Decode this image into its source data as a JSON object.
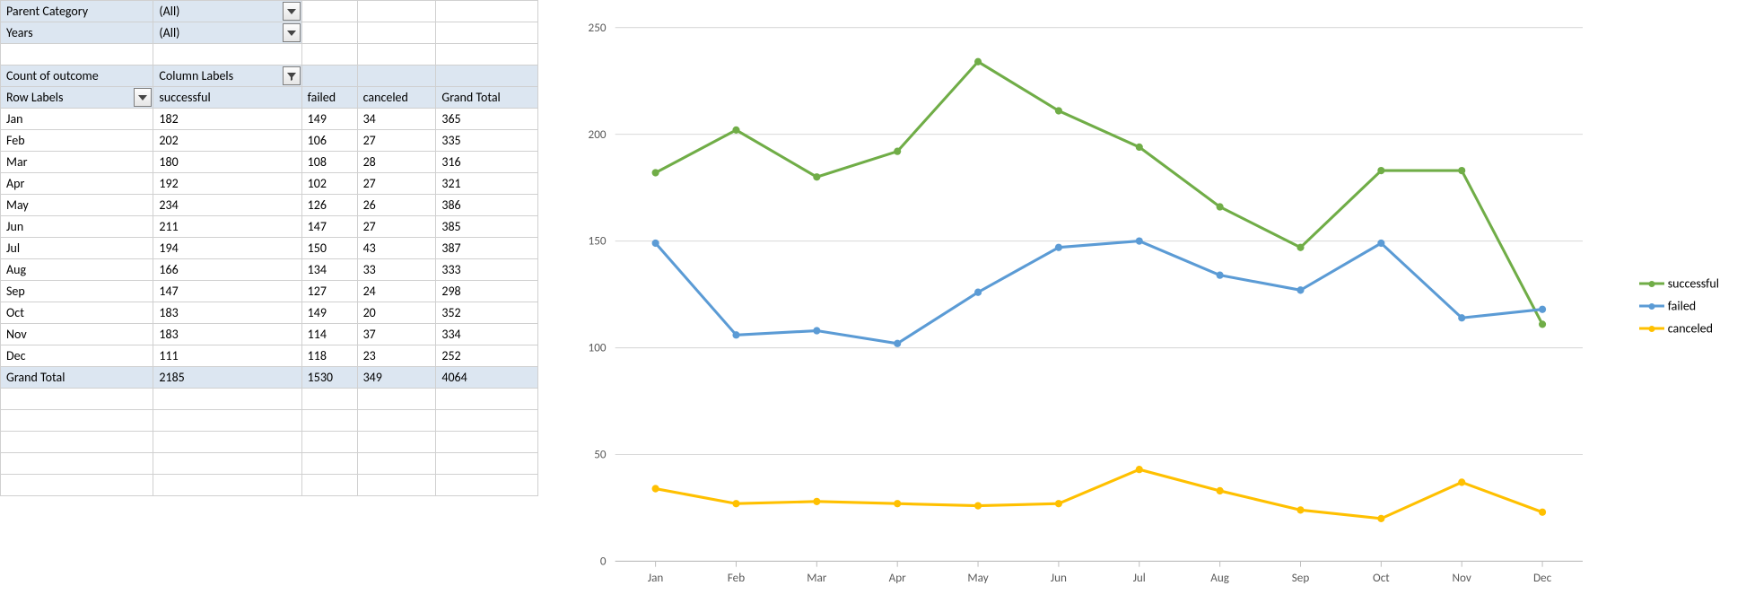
{
  "filters": [
    {
      "label": "Parent Category",
      "value": "(All)"
    },
    {
      "label": "Years",
      "value": "(All)"
    }
  ],
  "pivot": {
    "measure_label": "Count of outcome",
    "columns_label": "Column Labels",
    "row_label_header": "Row Labels",
    "col_headers": [
      "successful",
      "failed",
      "canceled",
      "Grand Total"
    ],
    "rows": [
      {
        "label": "Jan",
        "vals": [
          182,
          149,
          34,
          365
        ]
      },
      {
        "label": "Feb",
        "vals": [
          202,
          106,
          27,
          335
        ]
      },
      {
        "label": "Mar",
        "vals": [
          180,
          108,
          28,
          316
        ]
      },
      {
        "label": "Apr",
        "vals": [
          192,
          102,
          27,
          321
        ]
      },
      {
        "label": "May",
        "vals": [
          234,
          126,
          26,
          386
        ]
      },
      {
        "label": "Jun",
        "vals": [
          211,
          147,
          27,
          385
        ]
      },
      {
        "label": "Jul",
        "vals": [
          194,
          150,
          43,
          387
        ]
      },
      {
        "label": "Aug",
        "vals": [
          166,
          134,
          33,
          333
        ]
      },
      {
        "label": "Sep",
        "vals": [
          147,
          127,
          24,
          298
        ]
      },
      {
        "label": "Oct",
        "vals": [
          183,
          149,
          20,
          352
        ]
      },
      {
        "label": "Nov",
        "vals": [
          183,
          114,
          37,
          334
        ]
      },
      {
        "label": "Dec",
        "vals": [
          111,
          118,
          23,
          252
        ]
      }
    ],
    "grand_total_label": "Grand Total",
    "grand_total_vals": [
      2185,
      1530,
      349,
      4064
    ]
  },
  "chart": {
    "type": "line",
    "categories": [
      "Jan",
      "Feb",
      "Mar",
      "Apr",
      "May",
      "Jun",
      "Jul",
      "Aug",
      "Sep",
      "Oct",
      "Nov",
      "Dec"
    ],
    "series": [
      {
        "name": "successful",
        "color": "#70ad47",
        "values": [
          182,
          202,
          180,
          192,
          234,
          211,
          194,
          166,
          147,
          183,
          183,
          111
        ]
      },
      {
        "name": "failed",
        "color": "#5b9bd5",
        "values": [
          149,
          106,
          108,
          102,
          126,
          147,
          150,
          134,
          127,
          149,
          114,
          118
        ]
      },
      {
        "name": "canceled",
        "color": "#ffc000",
        "values": [
          34,
          27,
          28,
          27,
          26,
          27,
          43,
          33,
          24,
          20,
          37,
          23
        ]
      }
    ],
    "ylim": [
      0,
      250
    ],
    "ytick_step": 50,
    "grid_color": "#d9d9d9",
    "axis_color": "#bfbfbf",
    "tick_font_size": 13,
    "line_width": 3,
    "marker_radius": 4,
    "background_color": "#ffffff"
  }
}
